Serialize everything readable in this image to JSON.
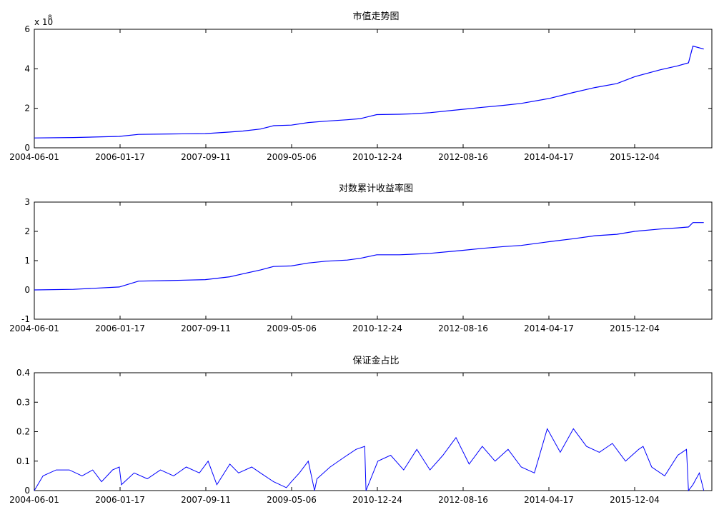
{
  "figure": {
    "line_color": "#0000ff",
    "axis_color": "#000000",
    "background": "#ffffff"
  },
  "chart_data": [
    {
      "type": "line",
      "title": "市值走势图",
      "xlabel": "",
      "ylabel": "",
      "exponent_label": "x 10",
      "exponent_power": "8",
      "x_tick_labels": [
        "2004-06-01",
        "2006-01-17",
        "2007-09-11",
        "2009-05-06",
        "2010-12-24",
        "2012-08-16",
        "2014-04-17",
        "2015-12-04"
      ],
      "y_ticks": [
        0,
        2,
        4,
        6
      ],
      "y_tick_labels": [
        "0",
        "2",
        "4",
        "6"
      ],
      "ylim": [
        0,
        6
      ],
      "grid": false,
      "series": [
        {
          "x": [
            "2004-06-01",
            "2005-03-01",
            "2006-01-17",
            "2006-06-01",
            "2007-01-01",
            "2007-09-11",
            "2008-03-01",
            "2008-06-01",
            "2008-10-01",
            "2009-01-01",
            "2009-05-06",
            "2009-09-01",
            "2010-01-01",
            "2010-06-01",
            "2010-09-01",
            "2010-12-24",
            "2011-06-01",
            "2011-09-01",
            "2012-01-01",
            "2012-08-16",
            "2013-01-01",
            "2013-06-01",
            "2013-10-01",
            "2014-04-17",
            "2014-10-01",
            "2015-03-01",
            "2015-08-01",
            "2015-12-04",
            "2016-06-01",
            "2016-10-01",
            "2016-12-15",
            "2017-01-15",
            "2017-04-01"
          ],
          "values": [
            0.5,
            0.52,
            0.58,
            0.68,
            0.7,
            0.72,
            0.8,
            0.85,
            0.95,
            1.12,
            1.15,
            1.28,
            1.35,
            1.42,
            1.48,
            1.68,
            1.7,
            1.72,
            1.78,
            1.95,
            2.05,
            2.15,
            2.25,
            2.5,
            2.8,
            3.05,
            3.25,
            3.6,
            3.95,
            4.15,
            4.3,
            5.15,
            5.0
          ]
        }
      ]
    },
    {
      "type": "line",
      "title": "对数累计收益率图",
      "xlabel": "",
      "ylabel": "",
      "x_tick_labels": [
        "2004-06-01",
        "2006-01-17",
        "2007-09-11",
        "2009-05-06",
        "2010-12-24",
        "2012-08-16",
        "2014-04-17",
        "2015-12-04"
      ],
      "y_ticks": [
        -1,
        0,
        1,
        2,
        3
      ],
      "y_tick_labels": [
        "-1",
        "0",
        "1",
        "2",
        "3"
      ],
      "ylim": [
        -1,
        3
      ],
      "grid": false,
      "series": [
        {
          "x": [
            "2004-06-01",
            "2005-03-01",
            "2006-01-17",
            "2006-06-01",
            "2007-01-01",
            "2007-09-11",
            "2008-03-01",
            "2008-06-01",
            "2008-10-01",
            "2009-01-01",
            "2009-05-06",
            "2009-09-01",
            "2010-01-01",
            "2010-06-01",
            "2010-09-01",
            "2010-12-24",
            "2011-06-01",
            "2011-09-01",
            "2012-01-01",
            "2012-08-16",
            "2013-01-01",
            "2013-06-01",
            "2013-10-01",
            "2014-04-17",
            "2014-10-01",
            "2015-03-01",
            "2015-08-01",
            "2015-12-04",
            "2016-06-01",
            "2016-10-01",
            "2016-12-15",
            "2017-01-15",
            "2017-04-01"
          ],
          "values": [
            0.0,
            0.02,
            0.1,
            0.3,
            0.32,
            0.35,
            0.45,
            0.55,
            0.68,
            0.8,
            0.82,
            0.92,
            0.98,
            1.02,
            1.08,
            1.2,
            1.2,
            1.22,
            1.25,
            1.35,
            1.42,
            1.48,
            1.52,
            1.65,
            1.75,
            1.85,
            1.9,
            2.0,
            2.08,
            2.12,
            2.15,
            2.3,
            2.3
          ]
        }
      ]
    },
    {
      "type": "line",
      "title": "保证金占比",
      "xlabel": "",
      "ylabel": "",
      "x_tick_labels": [
        "2004-06-01",
        "2006-01-17",
        "2007-09-11",
        "2009-05-06",
        "2010-12-24",
        "2012-08-16",
        "2014-04-17",
        "2015-12-04"
      ],
      "y_ticks": [
        0,
        0.1,
        0.2,
        0.3,
        0.4
      ],
      "y_tick_labels": [
        "0",
        "0.1",
        "0.2",
        "0.3",
        "0.4"
      ],
      "ylim": [
        0,
        0.4
      ],
      "grid": false,
      "series": [
        {
          "x": [
            "2004-06-01",
            "2004-08-01",
            "2004-11-01",
            "2005-02-01",
            "2005-05-01",
            "2005-07-15",
            "2005-09-15",
            "2005-12-01",
            "2006-01-17",
            "2006-02-01",
            "2006-05-01",
            "2006-08-01",
            "2006-11-01",
            "2007-02-01",
            "2007-05-01",
            "2007-08-01",
            "2007-10-01",
            "2007-12-01",
            "2008-03-01",
            "2008-05-01",
            "2008-08-01",
            "2008-10-01",
            "2009-01-01",
            "2009-04-01",
            "2009-05-06",
            "2009-07-01",
            "2009-09-01",
            "2009-10-15",
            "2009-11-01",
            "2010-02-01",
            "2010-05-01",
            "2010-08-01",
            "2010-10-01",
            "2010-10-10",
            "2011-01-01",
            "2011-04-01",
            "2011-07-01",
            "2011-10-01",
            "2012-01-01",
            "2012-04-01",
            "2012-07-01",
            "2012-10-01",
            "2013-01-01",
            "2013-04-01",
            "2013-07-01",
            "2013-10-01",
            "2014-01-01",
            "2014-04-01",
            "2014-07-01",
            "2014-10-01",
            "2015-01-01",
            "2015-04-01",
            "2015-07-01",
            "2015-10-01",
            "2016-01-01",
            "2016-02-01",
            "2016-04-01",
            "2016-07-01",
            "2016-10-01",
            "2016-12-01",
            "2016-12-15",
            "2017-01-15",
            "2017-03-01",
            "2017-04-01"
          ],
          "values": [
            0.0,
            0.05,
            0.07,
            0.07,
            0.05,
            0.07,
            0.03,
            0.07,
            0.08,
            0.02,
            0.06,
            0.04,
            0.07,
            0.05,
            0.08,
            0.06,
            0.1,
            0.02,
            0.09,
            0.06,
            0.08,
            0.06,
            0.03,
            0.01,
            0.03,
            0.06,
            0.1,
            0.0,
            0.04,
            0.08,
            0.11,
            0.14,
            0.15,
            0.0,
            0.1,
            0.12,
            0.07,
            0.14,
            0.07,
            0.12,
            0.18,
            0.09,
            0.15,
            0.1,
            0.14,
            0.08,
            0.06,
            0.21,
            0.13,
            0.21,
            0.15,
            0.13,
            0.16,
            0.1,
            0.14,
            0.15,
            0.08,
            0.05,
            0.12,
            0.14,
            0.0,
            0.02,
            0.06,
            0.0
          ]
        }
      ]
    }
  ]
}
